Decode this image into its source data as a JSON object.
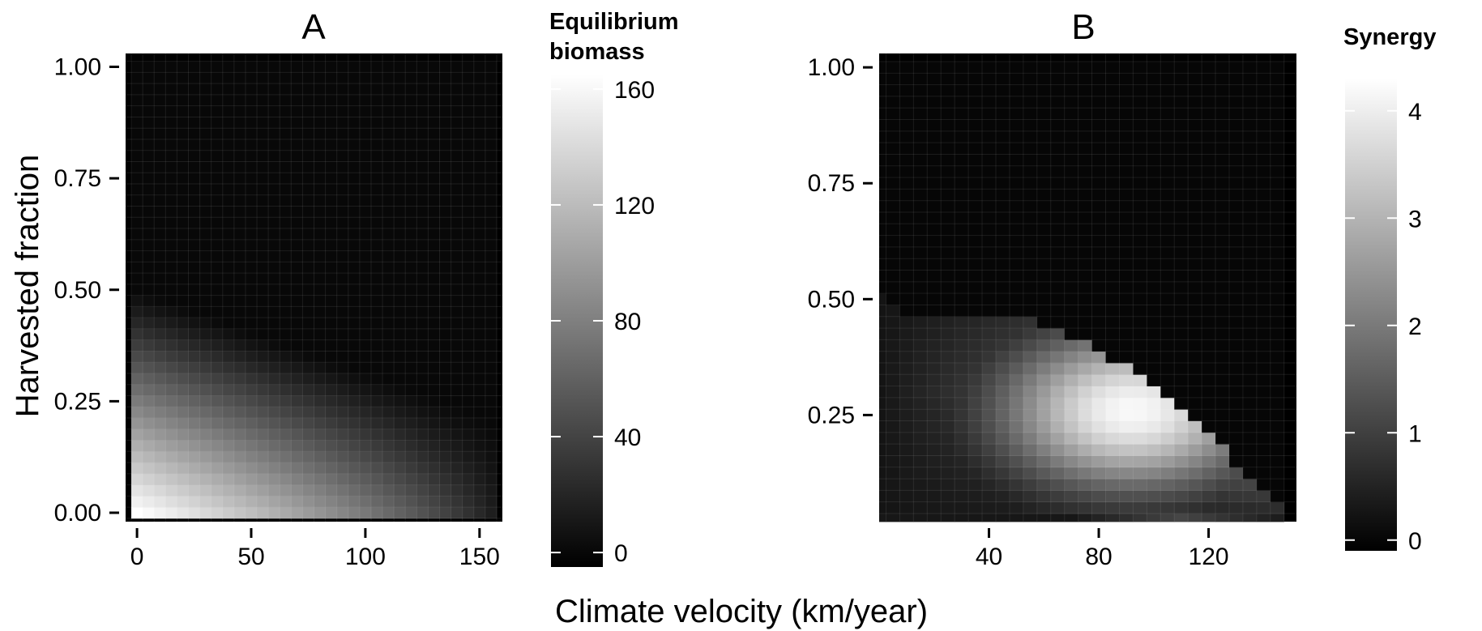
{
  "shared": {
    "xlabel": "Climate velocity (km/year)",
    "ylabel": "Harvested fraction"
  },
  "colors": {
    "low": "#000000",
    "high": "#ffffff",
    "background": "#ffffff",
    "grid": "#ffffff"
  },
  "chart_data": [
    {
      "type": "heatmap",
      "title": "A",
      "xlabel": "Climate velocity (km/year)",
      "ylabel": "Harvested fraction",
      "xlim": [
        -5,
        160
      ],
      "ylim": [
        -0.02,
        1.03
      ],
      "x_ticks": [
        "0",
        "50",
        "100",
        "150"
      ],
      "y_ticks": [
        "0.00",
        "0.25",
        "0.50",
        "0.75",
        "1.00"
      ],
      "colorbar": {
        "title": [
          "Equilibrium",
          "biomass"
        ],
        "ticks": [
          "0",
          "40",
          "80",
          "120",
          "160"
        ],
        "range": [
          -5,
          165
        ]
      },
      "x_cells": {
        "start": 0,
        "step": 5,
        "count": 32
      },
      "y_cells": {
        "start": 0,
        "step": 0.025,
        "count": 41
      },
      "value_surface": {
        "description": "biomass over climate velocity v and harvested fraction h",
        "z_max": 165,
        "h_fraction_break_at_v0": 0.5,
        "v_break_at_h0": 165
      },
      "grid": true
    },
    {
      "type": "heatmap",
      "title": "B",
      "xlabel": "Climate velocity (km/year)",
      "ylabel": "",
      "xlim": [
        0,
        152
      ],
      "ylim": [
        0.02,
        1.03
      ],
      "x_ticks": [
        "40",
        "80",
        "120"
      ],
      "y_ticks": [
        "0.25",
        "0.50",
        "0.75",
        "1.00"
      ],
      "colorbar": {
        "title": [
          "Synergy"
        ],
        "ticks": [
          "0",
          "1",
          "2",
          "3",
          "4"
        ],
        "range": [
          -0.1,
          4.3
        ]
      },
      "x_cells": {
        "start": 0,
        "step": 5,
        "count": 30
      },
      "y_cells": {
        "start": 0.025,
        "step": 0.025,
        "count": 40
      },
      "boundary_v_max_by_h": [
        [
          0.05,
          147
        ],
        [
          0.075,
          142
        ],
        [
          0.1,
          137
        ],
        [
          0.125,
          132
        ],
        [
          0.15,
          127
        ],
        [
          0.175,
          127
        ],
        [
          0.2,
          122
        ],
        [
          0.225,
          117
        ],
        [
          0.25,
          112
        ],
        [
          0.275,
          107
        ],
        [
          0.3,
          102
        ],
        [
          0.325,
          97
        ],
        [
          0.35,
          92
        ],
        [
          0.375,
          82
        ],
        [
          0.4,
          77
        ],
        [
          0.425,
          67
        ],
        [
          0.45,
          57
        ],
        [
          0.475,
          7
        ],
        [
          0.5,
          2
        ]
      ],
      "peak": {
        "x": 92,
        "y": 0.26,
        "value": 4.2
      },
      "grid": true
    }
  ]
}
